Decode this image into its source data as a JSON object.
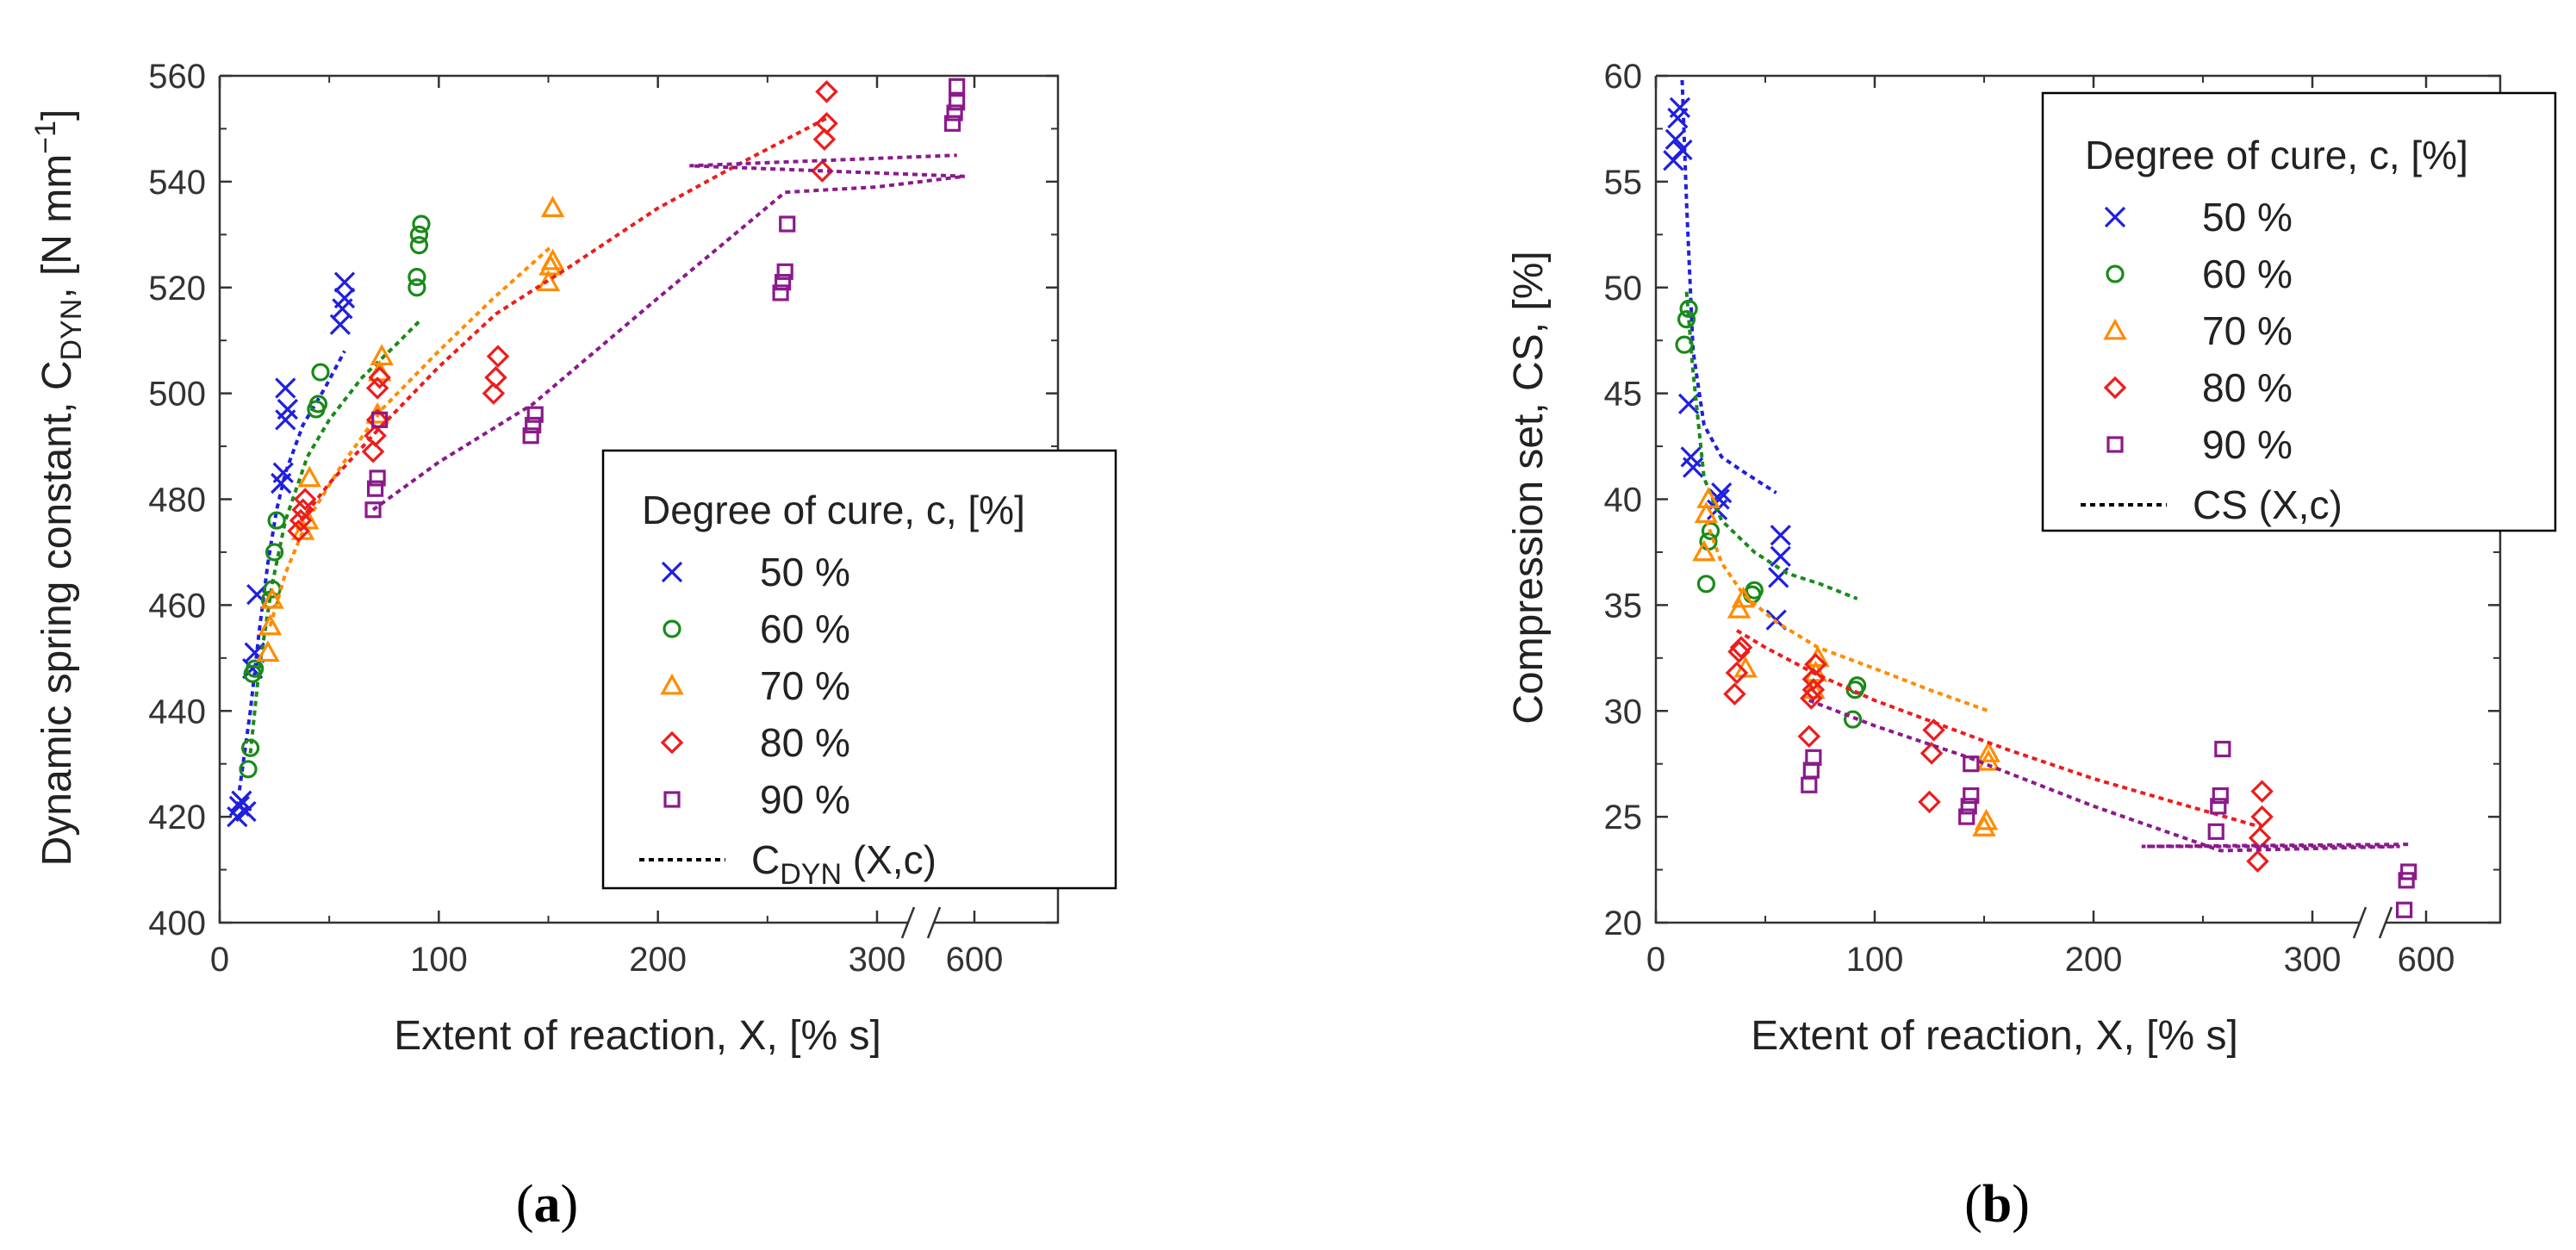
{
  "chart_data": [
    {
      "type": "scatter",
      "panel_label": {
        "open": "(",
        "letter": "a",
        "close": ")"
      },
      "ylabel": {
        "main": "Dynamic spring constant, C",
        "sub": "DYN",
        "unit_open": ", [N mm",
        "sup": "−1",
        "unit_close": "]"
      },
      "xlabel": "Extent of reaction, X, [% s]",
      "ylim": [
        400,
        560
      ],
      "yticks": [
        "400",
        "420",
        "440",
        "460",
        "480",
        "500",
        "520",
        "540",
        "560"
      ],
      "xaxis": {
        "segment1_range": [
          0,
          300
        ],
        "segment2_center": 600,
        "break": "//"
      },
      "xticks": [
        {
          "value": 0,
          "label": "0"
        },
        {
          "value": 100,
          "label": "100"
        },
        {
          "value": 200,
          "label": "200"
        },
        {
          "value": 300,
          "label": "300"
        },
        {
          "value": 600,
          "label": "600"
        }
      ],
      "legend": {
        "title": "Degree of cure, c, [%]",
        "fit_label": {
          "main": "C",
          "sub": "DYN",
          "rest": " (X,c)"
        },
        "position": "lower-right"
      },
      "series": [
        {
          "name": "50 %",
          "marker": "x",
          "color": "#1f1fe0",
          "points": [
            [
              8,
              420
            ],
            [
              9,
              422
            ],
            [
              10,
              423
            ],
            [
              12,
              421
            ],
            [
              15,
              448
            ],
            [
              16,
              451
            ],
            [
              17,
              462
            ],
            [
              28,
              483
            ],
            [
              29,
              485
            ],
            [
              30,
              495
            ],
            [
              30,
              501
            ],
            [
              31,
              497
            ],
            [
              55,
              513
            ],
            [
              56,
              516
            ],
            [
              57,
              518
            ],
            [
              57,
              521
            ]
          ],
          "fit": [
            [
              9,
              425
            ],
            [
              14,
              440
            ],
            [
              18,
              455
            ],
            [
              22,
              468
            ],
            [
              26,
              478
            ],
            [
              30,
              485
            ],
            [
              38,
              494
            ],
            [
              48,
              501
            ],
            [
              57,
              508
            ]
          ]
        },
        {
          "name": "60 %",
          "marker": "circle",
          "color": "#1a8a1a",
          "points": [
            [
              13,
              429
            ],
            [
              14,
              433
            ],
            [
              15,
              447
            ],
            [
              16,
              448
            ],
            [
              23,
              461
            ],
            [
              24,
              463
            ],
            [
              25,
              470
            ],
            [
              26,
              476
            ],
            [
              44,
              497
            ],
            [
              45,
              498
            ],
            [
              46,
              504
            ],
            [
              90,
              520
            ],
            [
              90,
              522
            ],
            [
              91,
              528
            ],
            [
              91,
              530
            ],
            [
              92,
              532
            ]
          ],
          "fit": [
            [
              14,
              432
            ],
            [
              18,
              448
            ],
            [
              24,
              464
            ],
            [
              30,
              476
            ],
            [
              40,
              488
            ],
            [
              50,
              495
            ],
            [
              65,
              503
            ],
            [
              80,
              509
            ],
            [
              92,
              514
            ]
          ]
        },
        {
          "name": "70 %",
          "marker": "triangle",
          "color": "#ff8c00",
          "points": [
            [
              22,
              451
            ],
            [
              23,
              456
            ],
            [
              24,
              461
            ],
            [
              38,
              474
            ],
            [
              40,
              476
            ],
            [
              41,
              484
            ],
            [
              72,
              496
            ],
            [
              73,
              504
            ],
            [
              74,
              507
            ],
            [
              150,
              521
            ],
            [
              151,
              524
            ],
            [
              152,
              525
            ],
            [
              152,
              535
            ]
          ],
          "fit": [
            [
              23,
              456
            ],
            [
              30,
              466
            ],
            [
              40,
              476
            ],
            [
              55,
              486
            ],
            [
              74,
              497
            ],
            [
              100,
              508
            ],
            [
              125,
              518
            ],
            [
              152,
              528
            ]
          ]
        },
        {
          "name": "80 %",
          "marker": "diamond",
          "color": "#ee1c1c",
          "points": [
            [
              36,
              474
            ],
            [
              37,
              476
            ],
            [
              38,
              478
            ],
            [
              39,
              480
            ],
            [
              70,
              489
            ],
            [
              71,
              492
            ],
            [
              72,
              495
            ],
            [
              72,
              501
            ],
            [
              73,
              503
            ],
            [
              125,
              500
            ],
            [
              126,
              503
            ],
            [
              127,
              507
            ],
            [
              275,
              542
            ],
            [
              276,
              548
            ],
            [
              277,
              551
            ],
            [
              277,
              557
            ]
          ],
          "fit": [
            [
              37,
              476
            ],
            [
              50,
              483
            ],
            [
              72,
              493
            ],
            [
              100,
              505
            ],
            [
              126,
              515
            ],
            [
              160,
              524
            ],
            [
              200,
              535
            ],
            [
              240,
              544
            ],
            [
              277,
              552
            ]
          ]
        },
        {
          "name": "90 %",
          "marker": "square",
          "color": "#8b1a8b",
          "points": [
            [
              70,
              478
            ],
            [
              71,
              482
            ],
            [
              72,
              484
            ],
            [
              73,
              495
            ],
            [
              142,
              492
            ],
            [
              143,
              494
            ],
            [
              144,
              496
            ],
            [
              256,
              519
            ],
            [
              257,
              521
            ],
            [
              258,
              523
            ],
            [
              259,
              532
            ],
            [
              590,
              551
            ],
            [
              591,
              553
            ],
            [
              592,
              555
            ],
            [
              592,
              558
            ]
          ],
          "fit": [
            [
              70,
              478
            ],
            [
              100,
              487
            ],
            [
              143,
              498
            ],
            [
              200,
              518
            ],
            [
              258,
              538
            ],
            [
              300,
              539
            ],
            [
              340,
              541
            ],
            [
              470,
              543
            ],
            [
              592,
              545
            ]
          ]
        }
      ]
    },
    {
      "type": "scatter",
      "panel_label": {
        "open": "(",
        "letter": "b",
        "close": ")"
      },
      "ylabel": "Compression set, CS, [%]",
      "xlabel": "Extent of reaction, X, [% s]",
      "ylim": [
        20,
        60
      ],
      "yticks": [
        "20",
        "25",
        "30",
        "35",
        "40",
        "45",
        "50",
        "55",
        "60"
      ],
      "xaxis": {
        "segment1_range": [
          0,
          300
        ],
        "segment2_center": 600,
        "break": "//"
      },
      "xticks": [
        {
          "value": 0,
          "label": "0"
        },
        {
          "value": 100,
          "label": "100"
        },
        {
          "value": 200,
          "label": "200"
        },
        {
          "value": 300,
          "label": "300"
        },
        {
          "value": 600,
          "label": "600"
        }
      ],
      "legend": {
        "title": "Degree of cure, c, [%]",
        "fit_label": "CS (X,c)",
        "position": "top-right"
      },
      "series": [
        {
          "name": "50 %",
          "marker": "x",
          "color": "#1f1fe0",
          "points": [
            [
              8,
              56
            ],
            [
              9,
              57
            ],
            [
              10,
              58
            ],
            [
              11,
              58.5
            ],
            [
              12,
              56.5
            ],
            [
              15,
              44.5
            ],
            [
              16,
              42
            ],
            [
              17,
              41.5
            ],
            [
              28,
              39.5
            ],
            [
              29,
              40
            ],
            [
              30,
              40.3
            ],
            [
              55,
              34.3
            ],
            [
              56,
              36.3
            ],
            [
              57,
              37.3
            ],
            [
              57,
              38.3
            ]
          ],
          "fit": [
            [
              12,
              59.8
            ],
            [
              14,
              54
            ],
            [
              17,
              47
            ],
            [
              22,
              43.5
            ],
            [
              30,
              42
            ],
            [
              40,
              41.3
            ],
            [
              55,
              40.3
            ]
          ]
        },
        {
          "name": "60 %",
          "marker": "circle",
          "color": "#1a8a1a",
          "points": [
            [
              13,
              47.3
            ],
            [
              14,
              48.5
            ],
            [
              15,
              49
            ],
            [
              23,
              36
            ],
            [
              24,
              38
            ],
            [
              25,
              38.5
            ],
            [
              44,
              35.5
            ],
            [
              45,
              35.7
            ],
            [
              90,
              29.6
            ],
            [
              91,
              31
            ],
            [
              92,
              31.2
            ]
          ],
          "fit": [
            [
              14,
              49.8
            ],
            [
              17,
              46
            ],
            [
              22,
              41
            ],
            [
              30,
              39
            ],
            [
              45,
              37.5
            ],
            [
              60,
              36.5
            ],
            [
              75,
              36
            ],
            [
              92,
              35.3
            ]
          ]
        },
        {
          "name": "70 %",
          "marker": "triangle",
          "color": "#ff8c00",
          "points": [
            [
              22,
              37.5
            ],
            [
              23,
              39.3
            ],
            [
              24,
              40
            ],
            [
              38,
              34.8
            ],
            [
              40,
              35.3
            ],
            [
              41,
              32
            ],
            [
              72,
              31
            ],
            [
              73,
              31.8
            ],
            [
              74,
              32.5
            ],
            [
              150,
              24.5
            ],
            [
              151,
              24.8
            ],
            [
              152,
              27.6
            ],
            [
              152,
              28
            ]
          ],
          "fit": [
            [
              23,
              39
            ],
            [
              30,
              37
            ],
            [
              40,
              35.5
            ],
            [
              55,
              34.2
            ],
            [
              74,
              33
            ],
            [
              100,
              32
            ],
            [
              125,
              31
            ],
            [
              152,
              30
            ]
          ]
        },
        {
          "name": "80 %",
          "marker": "diamond",
          "color": "#ee1c1c",
          "points": [
            [
              36,
              30.8
            ],
            [
              37,
              31.8
            ],
            [
              38,
              32.8
            ],
            [
              39,
              33
            ],
            [
              70,
              28.8
            ],
            [
              71,
              30.6
            ],
            [
              72,
              31
            ],
            [
              72,
              31.5
            ],
            [
              73,
              32.2
            ],
            [
              125,
              25.7
            ],
            [
              126,
              28
            ],
            [
              127,
              29.1
            ],
            [
              275,
              22.9
            ],
            [
              276,
              24
            ],
            [
              277,
              25
            ],
            [
              277,
              26.2
            ]
          ],
          "fit": [
            [
              37,
              33.8
            ],
            [
              50,
              33
            ],
            [
              72,
              31.8
            ],
            [
              100,
              30.5
            ],
            [
              126,
              29.5
            ],
            [
              160,
              28.2
            ],
            [
              200,
              26.8
            ],
            [
              240,
              25.6
            ],
            [
              277,
              24.5
            ]
          ]
        },
        {
          "name": "90 %",
          "marker": "square",
          "color": "#8b1a8b",
          "points": [
            [
              70,
              26.5
            ],
            [
              71,
              27.2
            ],
            [
              72,
              27.8
            ],
            [
              142,
              25
            ],
            [
              143,
              25.5
            ],
            [
              144,
              26
            ],
            [
              144,
              27.5
            ],
            [
              256,
              24.3
            ],
            [
              257,
              25.5
            ],
            [
              258,
              26
            ],
            [
              259,
              28.2
            ],
            [
              590,
              20.6
            ],
            [
              591,
              22
            ],
            [
              592,
              22.4
            ]
          ],
          "fit": [
            [
              70,
              30.5
            ],
            [
              100,
              29.3
            ],
            [
              143,
              27.8
            ],
            [
              200,
              25.5
            ],
            [
              258,
              23.4
            ],
            [
              300,
              23.5
            ],
            [
              340,
              23.6
            ],
            [
              470,
              23.6
            ],
            [
              592,
              23.7
            ]
          ]
        }
      ]
    }
  ]
}
